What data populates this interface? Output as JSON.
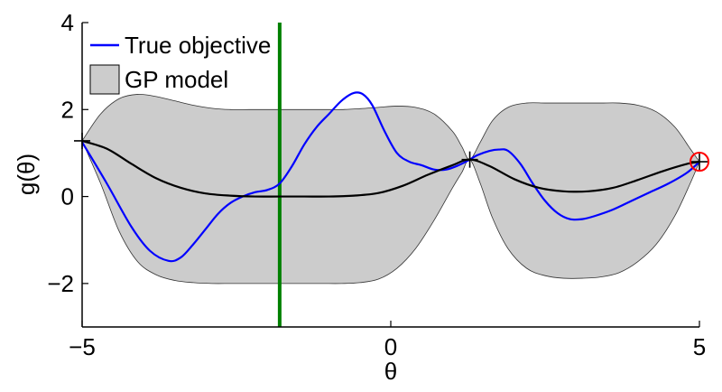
{
  "chart_data": {
    "type": "line",
    "xlabel": "θ",
    "ylabel": "g(θ)",
    "xlim": [
      -5,
      5
    ],
    "ylim": [
      -3,
      4
    ],
    "x_ticks": [
      -5,
      0,
      5
    ],
    "x_tick_labels": [
      "−5",
      "0",
      "5"
    ],
    "y_ticks": [
      -2,
      0,
      2,
      4
    ],
    "y_tick_labels": [
      "−2",
      "0",
      "2",
      "4"
    ],
    "grid": false,
    "legend": {
      "placement": "top-left",
      "entries": [
        {
          "label": "True objective",
          "color": "#0000ff",
          "kind": "line"
        },
        {
          "label": "GP model",
          "color": "#cccccc",
          "kind": "patch"
        }
      ]
    },
    "series": [
      {
        "name": "True objective",
        "color": "#0000ff",
        "x": [
          -5,
          -4.6,
          -4.2,
          -3.9,
          -3.6,
          -3.4,
          -3.2,
          -3.0,
          -2.8,
          -2.6,
          -2.4,
          -2.2,
          -2.0,
          -1.8,
          -1.6,
          -1.4,
          -1.2,
          -1.0,
          -0.8,
          -0.6,
          -0.45,
          -0.3,
          -0.1,
          0.1,
          0.3,
          0.5,
          0.7,
          0.9,
          1.1,
          1.28,
          1.4,
          1.6,
          1.75,
          1.9,
          2.1,
          2.3,
          2.5,
          2.7,
          2.9,
          3.1,
          3.3,
          3.6,
          3.9,
          4.2,
          4.5,
          4.8,
          5.0
        ],
        "y": [
          1.25,
          0.3,
          -0.7,
          -1.25,
          -1.48,
          -1.4,
          -1.1,
          -0.75,
          -0.4,
          -0.15,
          0.0,
          0.1,
          0.15,
          0.3,
          0.7,
          1.2,
          1.6,
          1.9,
          2.2,
          2.38,
          2.35,
          2.1,
          1.5,
          1.0,
          0.8,
          0.72,
          0.62,
          0.62,
          0.72,
          0.85,
          0.95,
          1.05,
          1.08,
          1.05,
          0.75,
          0.3,
          -0.1,
          -0.38,
          -0.52,
          -0.52,
          -0.45,
          -0.3,
          -0.1,
          0.1,
          0.3,
          0.55,
          0.8
        ]
      },
      {
        "name": "GP mean",
        "color": "#000000",
        "x": [
          -5,
          -4.6,
          -4.2,
          -3.8,
          -3.4,
          -3.0,
          -2.6,
          -2.2,
          -1.8,
          -1.4,
          -1.0,
          -0.6,
          -0.2,
          0.2,
          0.6,
          1.0,
          1.28,
          1.6,
          2.0,
          2.4,
          2.8,
          3.2,
          3.6,
          4.0,
          4.4,
          4.8,
          5.0
        ],
        "y": [
          1.28,
          1.1,
          0.75,
          0.42,
          0.2,
          0.07,
          0.02,
          0.0,
          0.0,
          0.0,
          0.0,
          0.02,
          0.08,
          0.25,
          0.5,
          0.72,
          0.85,
          0.7,
          0.4,
          0.2,
          0.12,
          0.12,
          0.2,
          0.38,
          0.58,
          0.75,
          0.8
        ]
      }
    ],
    "confidence_band": {
      "name": "GP model",
      "color": "#cccccc",
      "x": [
        -5,
        -4.7,
        -4.4,
        -4.1,
        -3.8,
        -3.5,
        -3.2,
        -2.9,
        -2.6,
        -2.3,
        -2.0,
        -1.7,
        -1.4,
        -1.1,
        -0.8,
        -0.5,
        -0.2,
        0.1,
        0.4,
        0.7,
        1.0,
        1.15,
        1.28,
        1.45,
        1.65,
        1.9,
        2.2,
        2.5,
        2.8,
        3.1,
        3.4,
        3.7,
        4.0,
        4.3,
        4.6,
        4.85,
        5.0
      ],
      "upper": [
        1.28,
        1.9,
        2.25,
        2.35,
        2.3,
        2.2,
        2.1,
        2.03,
        2.0,
        2.0,
        2.0,
        2.0,
        2.0,
        2.0,
        2.0,
        2.02,
        2.05,
        2.08,
        2.05,
        1.9,
        1.5,
        1.15,
        0.85,
        1.25,
        1.75,
        2.05,
        2.15,
        2.15,
        2.15,
        2.15,
        2.15,
        2.15,
        2.1,
        1.95,
        1.6,
        1.1,
        0.8
      ],
      "lower": [
        1.28,
        0.3,
        -0.8,
        -1.5,
        -1.8,
        -1.93,
        -1.98,
        -2.0,
        -2.0,
        -2.0,
        -2.0,
        -2.0,
        -2.0,
        -2.0,
        -2.0,
        -1.98,
        -1.9,
        -1.65,
        -1.2,
        -0.55,
        0.2,
        0.55,
        0.85,
        0.3,
        -0.5,
        -1.2,
        -1.65,
        -1.82,
        -1.88,
        -1.88,
        -1.85,
        -1.75,
        -1.5,
        -1.1,
        -0.45,
        0.3,
        0.8
      ]
    },
    "vertical_line": {
      "x": -1.8,
      "color": "#008000"
    },
    "observations": {
      "x": [
        -5,
        1.28,
        5.0
      ],
      "y": [
        1.28,
        0.85,
        0.8
      ],
      "marker": "+",
      "color": "#000000"
    },
    "highlight": {
      "x": 5.0,
      "y": 0.8,
      "marker": "circle",
      "color": "#ff0000"
    }
  }
}
